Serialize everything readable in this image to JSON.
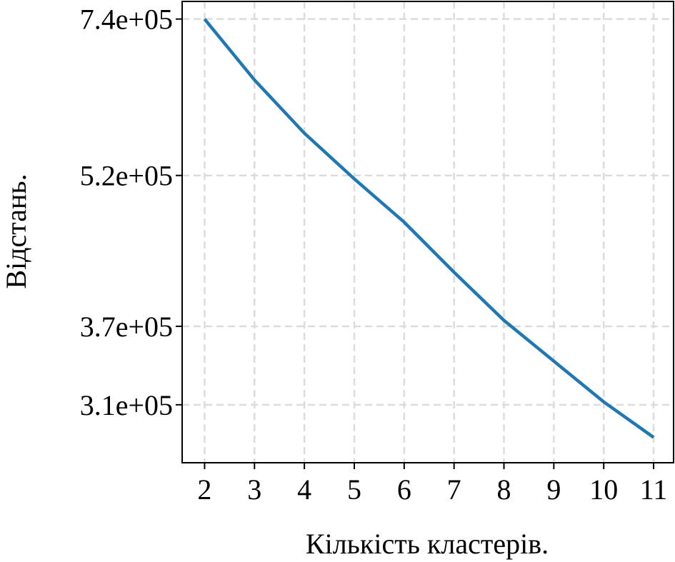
{
  "chart_data": {
    "type": "line",
    "xlabel": "Кількість кластерів.",
    "ylabel": "Відстань.",
    "x": [
      2,
      3,
      4,
      5,
      6,
      7,
      8,
      9,
      10,
      11
    ],
    "series": [
      {
        "values": [
          740000,
          645000,
          572000,
          516000,
          468000,
          418000,
          375000,
          342000,
          312000,
          288000
        ],
        "color": "#1f77b4"
      }
    ],
    "xticks": [
      2,
      3,
      4,
      5,
      6,
      7,
      8,
      9,
      10,
      11
    ],
    "xtick_labels": [
      "2",
      "3",
      "4",
      "5",
      "6",
      "7",
      "8",
      "9",
      "10",
      "11"
    ],
    "yticks": [
      740000,
      520000,
      370000,
      310000
    ],
    "ytick_labels": [
      "7.4e+05",
      "5.2e+05",
      "3.7e+05",
      "3.1e+05"
    ],
    "yscale": "log",
    "xlim": [
      1.55,
      11.4
    ],
    "ylim": [
      272000,
      770000
    ],
    "grid": true
  }
}
